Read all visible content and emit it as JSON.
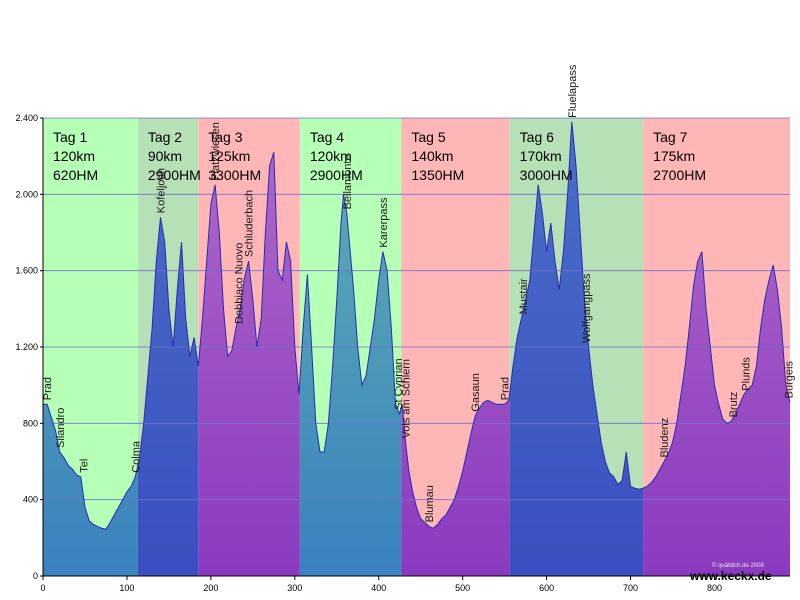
{
  "chart_data": {
    "type": "area",
    "title": "",
    "xlabel": "",
    "ylabel": "",
    "xlim": [
      0,
      890
    ],
    "ylim": [
      0,
      2400
    ],
    "x_ticks": [
      0,
      100,
      200,
      300,
      400,
      500,
      600,
      700,
      800
    ],
    "x_tick_labels": [
      "0",
      "100",
      "200",
      "300",
      "400",
      "500",
      "600",
      "700",
      "800"
    ],
    "y_ticks": [
      0,
      400,
      800,
      1200,
      1600,
      2000,
      2400
    ],
    "y_tick_labels": [
      "0",
      "400",
      "800",
      "1.200",
      "1.600",
      "2.000",
      "2.400"
    ],
    "grid": true,
    "profile_color": "#2b2bb0",
    "stages": [
      {
        "label": "Tag 1",
        "distance": "120km",
        "climb": "620HM",
        "x_start": 0,
        "x_end": 113,
        "color": "#b6ffb6",
        "fill_top": "#5fb0b0",
        "fill_bottom": "#3a82c0"
      },
      {
        "label": "Tag 2",
        "distance": "90km",
        "climb": "2900HM",
        "x_start": 113,
        "x_end": 185,
        "color": "#b6e0b6",
        "fill_top": "#4a6fc8",
        "fill_bottom": "#3a4fc0"
      },
      {
        "label": "Tag 3",
        "distance": "125km",
        "climb": "3300HM",
        "x_start": 185,
        "x_end": 306,
        "color": "#ffb6b6",
        "fill_top": "#b06ac8",
        "fill_bottom": "#8a3ac0"
      },
      {
        "label": "Tag 4",
        "distance": "120km",
        "climb": "2900HM",
        "x_start": 306,
        "x_end": 427,
        "color": "#b6ffb6",
        "fill_top": "#5fb0b0",
        "fill_bottom": "#3a82c0"
      },
      {
        "label": "Tag 5",
        "distance": "140km",
        "climb": "1350HM",
        "x_start": 427,
        "x_end": 556,
        "color": "#ffb6b6",
        "fill_top": "#b06ac8",
        "fill_bottom": "#8a3ac0"
      },
      {
        "label": "Tag 6",
        "distance": "170km",
        "climb": "3000HM",
        "x_start": 556,
        "x_end": 715,
        "color": "#b6e0b6",
        "fill_top": "#4a6fc8",
        "fill_bottom": "#3a4fc0"
      },
      {
        "label": "Tag 7",
        "distance": "175km",
        "climb": "2700HM",
        "x_start": 715,
        "x_end": 890,
        "color": "#ffb6b6",
        "fill_top": "#b06ac8",
        "fill_bottom": "#8a3ac0"
      }
    ],
    "profile": [
      [
        0,
        900
      ],
      [
        5,
        900
      ],
      [
        10,
        830
      ],
      [
        15,
        760
      ],
      [
        20,
        650
      ],
      [
        25,
        620
      ],
      [
        30,
        580
      ],
      [
        35,
        560
      ],
      [
        40,
        530
      ],
      [
        45,
        520
      ],
      [
        50,
        360
      ],
      [
        55,
        290
      ],
      [
        60,
        270
      ],
      [
        65,
        260
      ],
      [
        70,
        250
      ],
      [
        75,
        245
      ],
      [
        80,
        280
      ],
      [
        85,
        320
      ],
      [
        90,
        360
      ],
      [
        95,
        400
      ],
      [
        100,
        440
      ],
      [
        105,
        470
      ],
      [
        110,
        520
      ],
      [
        115,
        620
      ],
      [
        120,
        800
      ],
      [
        125,
        1050
      ],
      [
        130,
        1300
      ],
      [
        135,
        1650
      ],
      [
        140,
        1880
      ],
      [
        145,
        1750
      ],
      [
        150,
        1400
      ],
      [
        155,
        1200
      ],
      [
        160,
        1500
      ],
      [
        165,
        1750
      ],
      [
        170,
        1350
      ],
      [
        175,
        1150
      ],
      [
        180,
        1250
      ],
      [
        185,
        1100
      ],
      [
        190,
        1350
      ],
      [
        195,
        1650
      ],
      [
        200,
        1950
      ],
      [
        205,
        2050
      ],
      [
        210,
        1800
      ],
      [
        215,
        1400
      ],
      [
        220,
        1150
      ],
      [
        225,
        1180
      ],
      [
        230,
        1300
      ],
      [
        235,
        1400
      ],
      [
        240,
        1560
      ],
      [
        245,
        1650
      ],
      [
        250,
        1450
      ],
      [
        255,
        1200
      ],
      [
        260,
        1350
      ],
      [
        265,
        1800
      ],
      [
        270,
        2150
      ],
      [
        275,
        2220
      ],
      [
        280,
        1600
      ],
      [
        285,
        1550
      ],
      [
        290,
        1750
      ],
      [
        295,
        1650
      ],
      [
        300,
        1200
      ],
      [
        305,
        950
      ],
      [
        310,
        1300
      ],
      [
        315,
        1580
      ],
      [
        320,
        1200
      ],
      [
        325,
        800
      ],
      [
        330,
        650
      ],
      [
        335,
        650
      ],
      [
        340,
        800
      ],
      [
        345,
        1100
      ],
      [
        350,
        1450
      ],
      [
        355,
        1850
      ],
      [
        358,
        2000
      ],
      [
        362,
        1900
      ],
      [
        370,
        1500
      ],
      [
        375,
        1200
      ],
      [
        380,
        1000
      ],
      [
        385,
        1050
      ],
      [
        390,
        1200
      ],
      [
        395,
        1350
      ],
      [
        400,
        1550
      ],
      [
        405,
        1700
      ],
      [
        410,
        1600
      ],
      [
        415,
        1300
      ],
      [
        420,
        900
      ],
      [
        425,
        850
      ],
      [
        428,
        900
      ],
      [
        432,
        700
      ],
      [
        436,
        550
      ],
      [
        440,
        450
      ],
      [
        445,
        360
      ],
      [
        450,
        300
      ],
      [
        455,
        280
      ],
      [
        460,
        260
      ],
      [
        465,
        250
      ],
      [
        470,
        270
      ],
      [
        475,
        300
      ],
      [
        480,
        320
      ],
      [
        485,
        360
      ],
      [
        490,
        400
      ],
      [
        495,
        470
      ],
      [
        500,
        550
      ],
      [
        505,
        650
      ],
      [
        510,
        750
      ],
      [
        515,
        840
      ],
      [
        520,
        880
      ],
      [
        525,
        910
      ],
      [
        530,
        920
      ],
      [
        535,
        910
      ],
      [
        540,
        900
      ],
      [
        545,
        900
      ],
      [
        550,
        900
      ],
      [
        555,
        920
      ],
      [
        560,
        1100
      ],
      [
        565,
        1250
      ],
      [
        570,
        1350
      ],
      [
        575,
        1450
      ],
      [
        580,
        1550
      ],
      [
        585,
        1800
      ],
      [
        590,
        2050
      ],
      [
        595,
        1900
      ],
      [
        600,
        1700
      ],
      [
        605,
        1850
      ],
      [
        610,
        1650
      ],
      [
        615,
        1500
      ],
      [
        620,
        1700
      ],
      [
        625,
        2000
      ],
      [
        630,
        2380
      ],
      [
        635,
        2150
      ],
      [
        640,
        1800
      ],
      [
        645,
        1450
      ],
      [
        650,
        1200
      ],
      [
        655,
        1000
      ],
      [
        660,
        850
      ],
      [
        665,
        700
      ],
      [
        670,
        600
      ],
      [
        675,
        540
      ],
      [
        680,
        520
      ],
      [
        685,
        480
      ],
      [
        690,
        500
      ],
      [
        695,
        650
      ],
      [
        700,
        470
      ],
      [
        705,
        460
      ],
      [
        710,
        455
      ],
      [
        715,
        460
      ],
      [
        720,
        470
      ],
      [
        725,
        490
      ],
      [
        730,
        520
      ],
      [
        735,
        560
      ],
      [
        740,
        600
      ],
      [
        745,
        640
      ],
      [
        750,
        700
      ],
      [
        755,
        800
      ],
      [
        760,
        950
      ],
      [
        765,
        1100
      ],
      [
        770,
        1300
      ],
      [
        775,
        1520
      ],
      [
        780,
        1650
      ],
      [
        785,
        1700
      ],
      [
        790,
        1400
      ],
      [
        795,
        1200
      ],
      [
        800,
        1000
      ],
      [
        805,
        900
      ],
      [
        810,
        820
      ],
      [
        815,
        800
      ],
      [
        820,
        810
      ],
      [
        825,
        850
      ],
      [
        830,
        900
      ],
      [
        835,
        950
      ],
      [
        840,
        980
      ],
      [
        845,
        1000
      ],
      [
        850,
        1100
      ],
      [
        855,
        1300
      ],
      [
        860,
        1450
      ],
      [
        865,
        1550
      ],
      [
        870,
        1630
      ],
      [
        875,
        1500
      ],
      [
        880,
        1300
      ],
      [
        885,
        1000
      ],
      [
        890,
        910
      ]
    ],
    "places": [
      {
        "name": "Prad",
        "x": 5,
        "y": 900
      },
      {
        "name": "Silandro",
        "x": 20,
        "y": 650
      },
      {
        "name": "Tel",
        "x": 48,
        "y": 520
      },
      {
        "name": "Colma",
        "x": 110,
        "y": 520
      },
      {
        "name": "Kofeljoch",
        "x": 140,
        "y": 1880
      },
      {
        "name": "Platzwiesen",
        "x": 205,
        "y": 2050
      },
      {
        "name": "Dobbiaco Nuovo",
        "x": 233,
        "y": 1300
      },
      {
        "name": "Schluderbach",
        "x": 245,
        "y": 1650
      },
      {
        "name": "Bellamonte",
        "x": 362,
        "y": 1900
      },
      {
        "name": "Karerpass",
        "x": 405,
        "y": 1700
      },
      {
        "name": "St Cyprian",
        "x": 423,
        "y": 850
      },
      {
        "name": "Vols am Schlern",
        "x": 432,
        "y": 700
      },
      {
        "name": "Blumau",
        "x": 460,
        "y": 260
      },
      {
        "name": "Gasaun",
        "x": 515,
        "y": 840
      },
      {
        "name": "Prad",
        "x": 550,
        "y": 900
      },
      {
        "name": "Mustair",
        "x": 572,
        "y": 1350
      },
      {
        "name": "Fluelapass",
        "x": 630,
        "y": 2380
      },
      {
        "name": "Wolfgangpass",
        "x": 647,
        "y": 1200
      },
      {
        "name": "Bludenz",
        "x": 740,
        "y": 600
      },
      {
        "name": "Brutz",
        "x": 822,
        "y": 810
      },
      {
        "name": "Plunds",
        "x": 837,
        "y": 950
      },
      {
        "name": "Burgeis",
        "x": 888,
        "y": 910
      }
    ]
  },
  "footer": {
    "watermark": "© quäldich.de 2008",
    "site": "www.keckx.de"
  }
}
